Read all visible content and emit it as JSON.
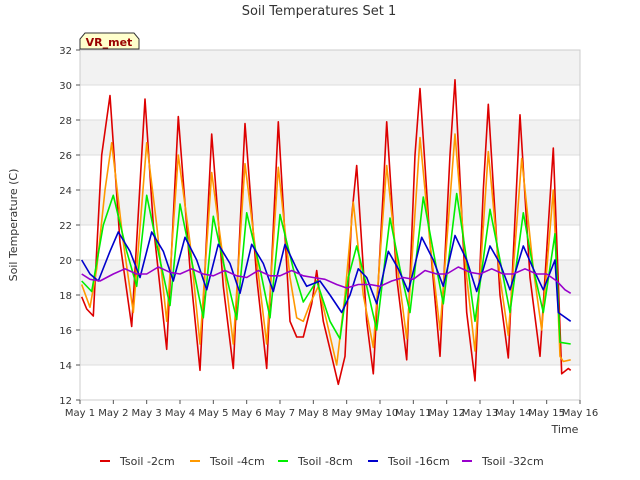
{
  "chart_data": {
    "type": "line",
    "title": "Soil Temperatures Set 1",
    "xlabel": "Time",
    "ylabel": "Soil Temperature (C)",
    "site_tag": "VR_met",
    "ylim": [
      12,
      32
    ],
    "yticks": [
      12,
      14,
      16,
      18,
      20,
      22,
      24,
      26,
      28,
      30,
      32
    ],
    "xlim": [
      1,
      16
    ],
    "xticks": [
      {
        "day": 1,
        "label": "May 1"
      },
      {
        "day": 2,
        "label": "May 2"
      },
      {
        "day": 3,
        "label": "May 3"
      },
      {
        "day": 4,
        "label": "May 4"
      },
      {
        "day": 5,
        "label": "May 5"
      },
      {
        "day": 6,
        "label": "May 6"
      },
      {
        "day": 7,
        "label": "May 7"
      },
      {
        "day": 8,
        "label": "May 8"
      },
      {
        "day": 9,
        "label": "May 9"
      },
      {
        "day": 10,
        "label": "May 10"
      },
      {
        "day": 11,
        "label": "May 11"
      },
      {
        "day": 12,
        "label": "May 12"
      },
      {
        "day": 13,
        "label": "May 13"
      },
      {
        "day": 14,
        "label": "May 14"
      },
      {
        "day": 15,
        "label": "May 15"
      },
      {
        "day": 16,
        "label": "May 16"
      }
    ],
    "grid": true,
    "legend_position": "bottom",
    "series": [
      {
        "name": "Tsoil -2cm",
        "color": "#dd0000",
        "points": [
          [
            1.05,
            17.9
          ],
          [
            1.2,
            17.2
          ],
          [
            1.4,
            16.8
          ],
          [
            1.65,
            26
          ],
          [
            1.9,
            29.4
          ],
          [
            2.2,
            21
          ],
          [
            2.55,
            16.2
          ],
          [
            2.95,
            29.2
          ],
          [
            3.2,
            22
          ],
          [
            3.6,
            14.9
          ],
          [
            3.95,
            28.2
          ],
          [
            4.3,
            19.5
          ],
          [
            4.6,
            13.7
          ],
          [
            4.95,
            27.2
          ],
          [
            5.3,
            18.5
          ],
          [
            5.6,
            13.8
          ],
          [
            5.95,
            27.8
          ],
          [
            6.3,
            19
          ],
          [
            6.6,
            13.8
          ],
          [
            6.95,
            27.9
          ],
          [
            7.3,
            16.5
          ],
          [
            7.5,
            15.6
          ],
          [
            7.7,
            15.6
          ],
          [
            7.95,
            17.5
          ],
          [
            8.1,
            19.4
          ],
          [
            8.3,
            16.5
          ],
          [
            8.55,
            14.5
          ],
          [
            8.75,
            12.9
          ],
          [
            8.95,
            14.5
          ],
          [
            9.15,
            22.5
          ],
          [
            9.3,
            25.4
          ],
          [
            9.6,
            16.5
          ],
          [
            9.8,
            13.5
          ],
          [
            10.1,
            24
          ],
          [
            10.2,
            27.9
          ],
          [
            10.5,
            19
          ],
          [
            10.8,
            14.3
          ],
          [
            11.05,
            26
          ],
          [
            11.2,
            29.8
          ],
          [
            11.5,
            21
          ],
          [
            11.8,
            14.5
          ],
          [
            12.1,
            26
          ],
          [
            12.25,
            30.3
          ],
          [
            12.6,
            17
          ],
          [
            12.85,
            13.1
          ],
          [
            13.1,
            24
          ],
          [
            13.25,
            28.9
          ],
          [
            13.6,
            18
          ],
          [
            13.85,
            14.4
          ],
          [
            14.2,
            28.3
          ],
          [
            14.5,
            19
          ],
          [
            14.8,
            14.5
          ],
          [
            15.05,
            22
          ],
          [
            15.2,
            26.4
          ],
          [
            15.45,
            13.5
          ],
          [
            15.65,
            13.8
          ],
          [
            15.72,
            13.7
          ]
        ]
      },
      {
        "name": "Tsoil -4cm",
        "color": "#ff9900",
        "points": [
          [
            1.05,
            18.6
          ],
          [
            1.3,
            17.3
          ],
          [
            1.5,
            19.5
          ],
          [
            1.75,
            24
          ],
          [
            1.95,
            26.7
          ],
          [
            2.3,
            21
          ],
          [
            2.6,
            17
          ],
          [
            3.0,
            26.7
          ],
          [
            3.3,
            22
          ],
          [
            3.6,
            16.5
          ],
          [
            3.95,
            26
          ],
          [
            4.3,
            21
          ],
          [
            4.6,
            15.2
          ],
          [
            4.95,
            25
          ],
          [
            5.3,
            20
          ],
          [
            5.6,
            15.2
          ],
          [
            5.95,
            25.5
          ],
          [
            6.3,
            20
          ],
          [
            6.6,
            15.2
          ],
          [
            6.95,
            25.3
          ],
          [
            7.3,
            19
          ],
          [
            7.5,
            16.7
          ],
          [
            7.7,
            16.5
          ],
          [
            7.9,
            17.5
          ],
          [
            8.15,
            18.5
          ],
          [
            8.4,
            16.5
          ],
          [
            8.7,
            14
          ],
          [
            8.95,
            18
          ],
          [
            9.2,
            23.3
          ],
          [
            9.5,
            18
          ],
          [
            9.8,
            15
          ],
          [
            10.2,
            25.4
          ],
          [
            10.5,
            20
          ],
          [
            10.8,
            15.5
          ],
          [
            11.2,
            27
          ],
          [
            11.5,
            21
          ],
          [
            11.8,
            16
          ],
          [
            12.25,
            27.2
          ],
          [
            12.6,
            19
          ],
          [
            12.85,
            14.8
          ],
          [
            13.25,
            26.2
          ],
          [
            13.6,
            19
          ],
          [
            13.85,
            15.7
          ],
          [
            14.25,
            25.8
          ],
          [
            14.6,
            19.5
          ],
          [
            14.85,
            16
          ],
          [
            15.2,
            24
          ],
          [
            15.4,
            14.5
          ],
          [
            15.5,
            14.2
          ],
          [
            15.72,
            14.3
          ]
        ]
      },
      {
        "name": "Tsoil -8cm",
        "color": "#00ee00",
        "points": [
          [
            1.05,
            18.8
          ],
          [
            1.35,
            18.2
          ],
          [
            1.7,
            22
          ],
          [
            2.0,
            23.7
          ],
          [
            2.4,
            20.5
          ],
          [
            2.7,
            18.5
          ],
          [
            3.0,
            23.7
          ],
          [
            3.4,
            20
          ],
          [
            3.7,
            17.4
          ],
          [
            4.0,
            23.2
          ],
          [
            4.4,
            19.5
          ],
          [
            4.7,
            16.7
          ],
          [
            5.0,
            22.5
          ],
          [
            5.4,
            19
          ],
          [
            5.7,
            16.6
          ],
          [
            6.0,
            22.7
          ],
          [
            6.4,
            19.5
          ],
          [
            6.7,
            16.7
          ],
          [
            7.0,
            22.6
          ],
          [
            7.4,
            19.5
          ],
          [
            7.7,
            17.6
          ],
          [
            8.1,
            18.8
          ],
          [
            8.5,
            16.5
          ],
          [
            8.8,
            15.5
          ],
          [
            9.05,
            19
          ],
          [
            9.3,
            20.8
          ],
          [
            9.6,
            18.5
          ],
          [
            9.9,
            16
          ],
          [
            10.3,
            22.4
          ],
          [
            10.6,
            19.5
          ],
          [
            10.9,
            17
          ],
          [
            11.3,
            23.6
          ],
          [
            11.6,
            20.5
          ],
          [
            11.9,
            17.5
          ],
          [
            12.3,
            23.8
          ],
          [
            12.6,
            20
          ],
          [
            12.85,
            16.5
          ],
          [
            13.3,
            22.9
          ],
          [
            13.6,
            20
          ],
          [
            13.9,
            17
          ],
          [
            14.3,
            22.7
          ],
          [
            14.6,
            19.5
          ],
          [
            14.9,
            17
          ],
          [
            15.25,
            21.5
          ],
          [
            15.4,
            15.3
          ],
          [
            15.72,
            15.2
          ]
        ]
      },
      {
        "name": "Tsoil -16cm",
        "color": "#0000cc",
        "points": [
          [
            1.05,
            20
          ],
          [
            1.3,
            19.2
          ],
          [
            1.55,
            18.8
          ],
          [
            1.9,
            20.5
          ],
          [
            2.15,
            21.6
          ],
          [
            2.5,
            20.5
          ],
          [
            2.8,
            19
          ],
          [
            3.15,
            21.6
          ],
          [
            3.5,
            20.5
          ],
          [
            3.8,
            18.8
          ],
          [
            4.15,
            21.3
          ],
          [
            4.5,
            20
          ],
          [
            4.8,
            18.3
          ],
          [
            5.15,
            20.9
          ],
          [
            5.5,
            19.8
          ],
          [
            5.8,
            18.1
          ],
          [
            6.15,
            20.9
          ],
          [
            6.5,
            19.8
          ],
          [
            6.8,
            18.2
          ],
          [
            7.15,
            20.9
          ],
          [
            7.5,
            19.5
          ],
          [
            7.8,
            18.5
          ],
          [
            8.2,
            18.8
          ],
          [
            8.5,
            18
          ],
          [
            8.85,
            17
          ],
          [
            9.1,
            18
          ],
          [
            9.35,
            19.5
          ],
          [
            9.6,
            19
          ],
          [
            9.9,
            17.5
          ],
          [
            10.25,
            20.5
          ],
          [
            10.55,
            19.5
          ],
          [
            10.85,
            18.2
          ],
          [
            11.25,
            21.3
          ],
          [
            11.6,
            20
          ],
          [
            11.9,
            18.5
          ],
          [
            12.25,
            21.4
          ],
          [
            12.6,
            20
          ],
          [
            12.9,
            18.2
          ],
          [
            13.3,
            20.8
          ],
          [
            13.6,
            19.8
          ],
          [
            13.9,
            18.3
          ],
          [
            14.3,
            20.8
          ],
          [
            14.6,
            19.5
          ],
          [
            14.9,
            18.3
          ],
          [
            15.25,
            20
          ],
          [
            15.35,
            17
          ],
          [
            15.72,
            16.5
          ]
        ]
      },
      {
        "name": "Tsoil -32cm",
        "color": "#9900cc",
        "points": [
          [
            1.05,
            19.2
          ],
          [
            1.3,
            18.9
          ],
          [
            1.6,
            18.8
          ],
          [
            2.0,
            19.2
          ],
          [
            2.35,
            19.5
          ],
          [
            2.7,
            19.2
          ],
          [
            3.0,
            19.2
          ],
          [
            3.35,
            19.6
          ],
          [
            3.7,
            19.3
          ],
          [
            4.0,
            19.2
          ],
          [
            4.35,
            19.5
          ],
          [
            4.7,
            19.2
          ],
          [
            5.0,
            19.1
          ],
          [
            5.35,
            19.4
          ],
          [
            5.7,
            19.1
          ],
          [
            6.0,
            19
          ],
          [
            6.35,
            19.4
          ],
          [
            6.7,
            19.1
          ],
          [
            7.0,
            19.1
          ],
          [
            7.35,
            19.4
          ],
          [
            7.7,
            19.1
          ],
          [
            8.0,
            19
          ],
          [
            8.35,
            18.9
          ],
          [
            8.7,
            18.6
          ],
          [
            9.0,
            18.4
          ],
          [
            9.35,
            18.6
          ],
          [
            9.7,
            18.6
          ],
          [
            10.0,
            18.5
          ],
          [
            10.35,
            18.8
          ],
          [
            10.7,
            19
          ],
          [
            11.0,
            18.9
          ],
          [
            11.35,
            19.4
          ],
          [
            11.7,
            19.2
          ],
          [
            12.0,
            19.2
          ],
          [
            12.35,
            19.6
          ],
          [
            12.7,
            19.3
          ],
          [
            13.0,
            19.2
          ],
          [
            13.35,
            19.5
          ],
          [
            13.7,
            19.2
          ],
          [
            14.0,
            19.2
          ],
          [
            14.35,
            19.5
          ],
          [
            14.7,
            19.2
          ],
          [
            15.0,
            19.2
          ],
          [
            15.3,
            18.8
          ],
          [
            15.55,
            18.3
          ],
          [
            15.72,
            18.1
          ]
        ]
      }
    ]
  }
}
